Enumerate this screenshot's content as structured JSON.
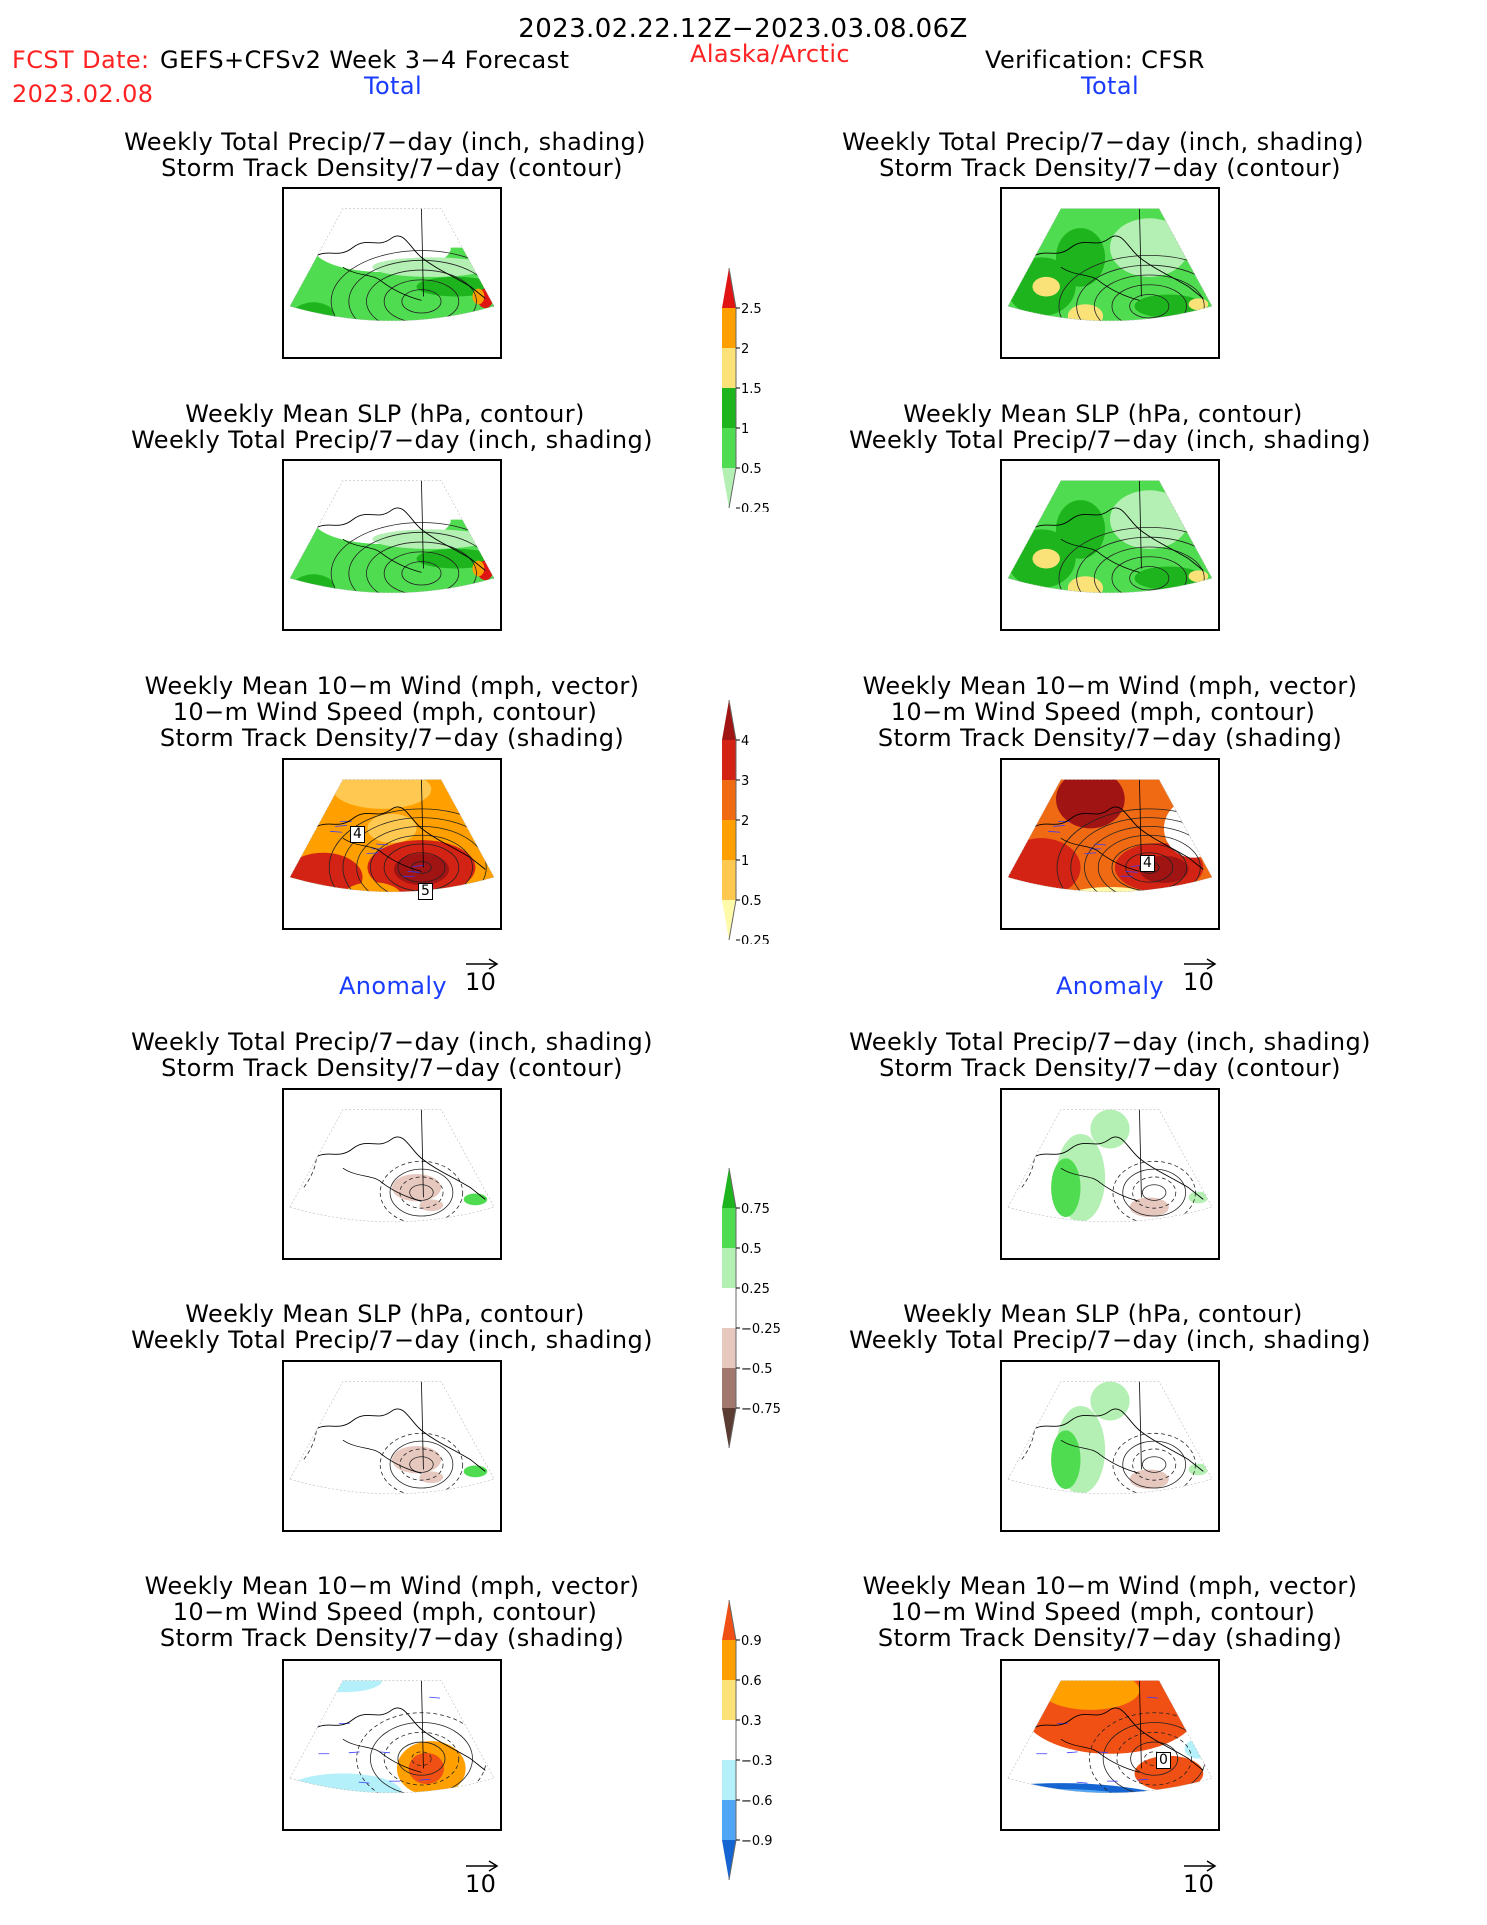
{
  "header": {
    "period": "2023.02.22.12Z−2023.03.08.06Z",
    "fcst_prefix": "FCST Date:",
    "model": "GEFS+CFSv2 Week 3−4 Forecast",
    "region": "Alaska/Arctic",
    "verification": "Verification: CFSR",
    "fcst_date": "2023.02.08"
  },
  "sections": {
    "total_left": "Total",
    "total_right": "Total",
    "anomaly_left": "Anomaly",
    "anomaly_right": "Anomaly"
  },
  "titles": {
    "precip_storm": [
      "Weekly Total Precip/7−day (inch, shading)",
      "Storm Track Density/7−day (contour)"
    ],
    "slp_precip": [
      "Weekly Mean SLP (hPa, contour)",
      "Weekly Total Precip/7−day (inch, shading)"
    ],
    "wind_storm": [
      "Weekly Mean 10−m Wind (mph, vector)",
      "10−m Wind Speed (mph, contour)",
      "Storm Track Density/7−day (shading)"
    ]
  },
  "vector_ref_label": "10",
  "colors": {
    "precip": [
      "#b4f0b4",
      "#50dc50",
      "#1eb41e",
      "#fae178",
      "#ffa000",
      "#e11414"
    ],
    "storm": [
      "#fffaaa",
      "#ffc850",
      "#ffa000",
      "#f06a14",
      "#d22314",
      "#a01414"
    ],
    "precip_anom": [
      "#5a3c32",
      "#a0786e",
      "#e6c8be",
      "#ffffff",
      "#b4f0b4",
      "#50dc50",
      "#1eb41e"
    ],
    "storm_anom": [
      "#1464d2",
      "#50a5f5",
      "#b4f0fa",
      "#ffffff",
      "#fae178",
      "#ffa000",
      "#f05014"
    ]
  },
  "chart_data": [
    {
      "type": "heatmap",
      "name": "colorbar-precip-total",
      "levels": [
        "0.25",
        "0.5",
        "1",
        "1.5",
        "2",
        "2.5"
      ]
    },
    {
      "type": "heatmap",
      "name": "colorbar-storm-total",
      "levels": [
        "0.25",
        "0.5",
        "1",
        "2",
        "3",
        "4"
      ]
    },
    {
      "type": "heatmap",
      "name": "colorbar-precip-anom",
      "levels": [
        "−0.75",
        "−0.5",
        "−0.25",
        "0.25",
        "0.5",
        "0.75"
      ]
    },
    {
      "type": "heatmap",
      "name": "colorbar-storm-anom",
      "levels": [
        "−0.9",
        "−0.6",
        "−0.3",
        "0.3",
        "0.6",
        "0.9"
      ]
    }
  ],
  "contour_labels": {
    "fc_wind_a": "4",
    "fc_wind_b": "5",
    "ob_wind": "4",
    "ob_wind_anom": "0"
  }
}
